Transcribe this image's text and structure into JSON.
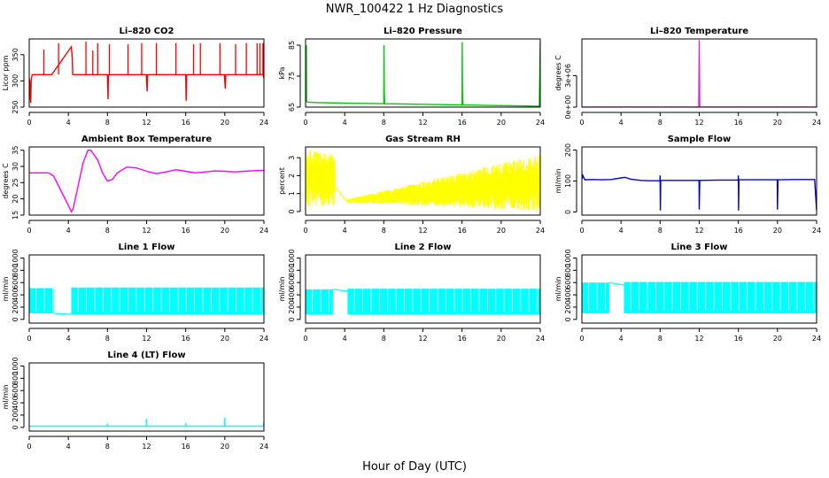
{
  "figure": {
    "title": "NWR_100422  1 Hz Diagnostics",
    "xlabel": "Hour of Day (UTC)"
  },
  "chart_data": [
    {
      "id": "co2",
      "type": "line",
      "title": "Li–820 CO2",
      "ylabel": "Licor ppm",
      "xlim": [
        0,
        24
      ],
      "ylim": [
        250,
        380
      ],
      "yticks": [
        250,
        300,
        350
      ],
      "yticklabels": [
        "250",
        "300",
        "350"
      ],
      "xticks": [
        0,
        4,
        8,
        12,
        16,
        20,
        24
      ],
      "color": "#ff0000",
      "series": [
        {
          "name": "CO2",
          "x": [
            0,
            0.05,
            0.1,
            0.15,
            0.2,
            0.3,
            2,
            2.3,
            4.3,
            4.4,
            4.45,
            4.6,
            6,
            8,
            8.02,
            8.06,
            8.1,
            8.4,
            10,
            11.98,
            12,
            12.05,
            12.1,
            14,
            15.95,
            16,
            16.02,
            16.05,
            16.1,
            18,
            19.95,
            20,
            20.05,
            20.1,
            22,
            23.9,
            24
          ],
          "y": [
            305,
            300,
            270,
            258,
            300,
            312,
            312,
            312,
            365,
            345,
            312,
            312,
            312,
            312,
            290,
            265,
            312,
            312,
            312,
            312,
            300,
            280,
            312,
            312,
            312,
            312,
            288,
            262,
            312,
            312,
            312,
            300,
            285,
            312,
            312,
            312,
            305
          ]
        },
        {
          "name": "CO2 spikes",
          "x": [
            1.5,
            3,
            5.8,
            6.5,
            7,
            8.2,
            10.1,
            11.5,
            13,
            15,
            16.8,
            17.5,
            19.5,
            21.1,
            22.2,
            23.3,
            23.6,
            23.9
          ],
          "y": [
            360,
            372,
            375,
            358,
            372,
            370,
            370,
            372,
            372,
            372,
            370,
            372,
            372,
            370,
            372,
            372,
            372,
            372
          ]
        }
      ]
    },
    {
      "id": "pressure",
      "type": "line",
      "title": "Li–820 Pressure",
      "ylabel": "kPa",
      "xlim": [
        0,
        24
      ],
      "ylim": [
        65,
        87
      ],
      "yticks": [
        65,
        75,
        85
      ],
      "yticklabels": [
        "65",
        "75",
        "85"
      ],
      "xticks": [
        0,
        4,
        8,
        12,
        16,
        20,
        24
      ],
      "color": "#00cc00",
      "series": [
        {
          "name": "Pressure",
          "x": [
            0,
            0.02,
            0.05,
            0.08,
            0.1,
            0.2,
            1,
            2,
            4,
            6,
            8,
            8.02,
            8.05,
            8.1,
            10,
            12,
            14,
            16,
            16.02,
            16.05,
            16.1,
            18,
            20,
            22,
            23.9,
            24,
            24.02
          ],
          "y": [
            66.8,
            85,
            72,
            85,
            66.8,
            66.6,
            66.5,
            66.4,
            66.3,
            66.2,
            66.1,
            85,
            70,
            66.1,
            66.0,
            65.9,
            65.8,
            65.7,
            86,
            70,
            65.7,
            65.6,
            65.5,
            65.4,
            65.3,
            86,
            66
          ]
        }
      ]
    },
    {
      "id": "temperature",
      "type": "line",
      "title": "Li–820 Temperature",
      "ylabel": "degrees C",
      "xlim": [
        0,
        24
      ],
      "ylim": [
        0,
        6500000
      ],
      "yticks": [
        0,
        3000000
      ],
      "yticklabels": [
        "0e+00",
        "3e+06"
      ],
      "xticks": [
        0,
        4,
        8,
        12,
        16,
        20,
        24
      ],
      "color": "#cc33cc",
      "series": [
        {
          "name": "Temperature",
          "x": [
            0,
            11.95,
            12,
            12.05,
            24
          ],
          "y": [
            48,
            48,
            6400000,
            48,
            48
          ]
        }
      ]
    },
    {
      "id": "ambient",
      "type": "line",
      "title": "Ambient Box Temperature",
      "ylabel": "degrees C",
      "xlim": [
        0,
        24
      ],
      "ylim": [
        15,
        36
      ],
      "yticks": [
        15,
        20,
        25,
        30,
        35
      ],
      "yticklabels": [
        "15",
        "20",
        "25",
        "30",
        "35"
      ],
      "xticks": [
        0,
        4,
        8,
        12,
        16,
        20,
        24
      ],
      "color": "#ff00ff",
      "series": [
        {
          "name": "Ambient",
          "x": [
            0,
            1,
            2,
            2.5,
            3,
            3.5,
            4,
            4.3,
            4.5,
            5,
            5.5,
            6,
            6.3,
            7,
            7.5,
            8,
            8.5,
            9,
            10,
            11,
            12,
            13,
            14,
            15,
            16,
            17,
            18,
            19,
            20,
            21,
            22,
            23,
            24
          ],
          "y": [
            28,
            28,
            28,
            27,
            24,
            21,
            18,
            16,
            17,
            24,
            31,
            35,
            35,
            32,
            28,
            25.5,
            26,
            28,
            29.8,
            29.5,
            28.5,
            27.8,
            28.3,
            29,
            28.5,
            28,
            28.3,
            28.6,
            28.5,
            28.3,
            28.5,
            28.7,
            28.8
          ]
        }
      ]
    },
    {
      "id": "rh",
      "type": "band",
      "title": "Gas Stream RH",
      "ylabel": "percent",
      "xlim": [
        0,
        24
      ],
      "ylim": [
        -0.2,
        3.6
      ],
      "yticks": [
        0,
        1,
        2,
        3
      ],
      "yticklabels": [
        "0",
        "1",
        "2",
        "3"
      ],
      "xticks": [
        0,
        4,
        8,
        12,
        16,
        20,
        24
      ],
      "color": "#ffff00",
      "series": [
        {
          "name": "RH",
          "x": [
            0,
            3,
            4.3,
            24
          ],
          "y": [
            1.6,
            1.4,
            0.6,
            1.5
          ],
          "low": [
            0.2,
            0.3,
            0.5,
            0.0
          ],
          "high": [
            3.5,
            3.2,
            0.7,
            3.2
          ]
        }
      ]
    },
    {
      "id": "sample_flow",
      "type": "line",
      "title": "Sample Flow",
      "ylabel": "ml/min",
      "xlim": [
        0,
        24
      ],
      "ylim": [
        -10,
        210
      ],
      "yticks": [
        0,
        100,
        200
      ],
      "yticklabels": [
        "0",
        "100",
        "200"
      ],
      "xticks": [
        0,
        4,
        8,
        12,
        16,
        20,
        24
      ],
      "color": "#0000dd",
      "series": [
        {
          "name": "Sample",
          "x": [
            0,
            0.1,
            0.3,
            1,
            2,
            3,
            4,
            4.4,
            5,
            6,
            7,
            7.98,
            8,
            8.02,
            8.06,
            8.1,
            10,
            11.98,
            12,
            12.05,
            12.1,
            14,
            15.98,
            16,
            16.02,
            16.06,
            16.1,
            18,
            19.98,
            20,
            20.05,
            20.1,
            22,
            23.8,
            24
          ],
          "y": [
            106,
            118,
            104,
            105,
            104,
            105,
            110,
            112,
            106,
            102,
            101,
            101,
            118,
            5,
            101,
            102,
            102,
            102,
            8,
            102,
            102,
            103,
            103,
            118,
            5,
            103,
            104,
            104,
            104,
            8,
            104,
            104,
            105,
            105,
            5
          ]
        }
      ]
    },
    {
      "id": "line1",
      "type": "band",
      "title": "Line 1 Flow",
      "ylabel": "ml/min",
      "xlim": [
        0,
        24
      ],
      "ylim": [
        -60,
        1050
      ],
      "yticks": [
        0,
        200,
        400,
        600,
        800,
        1000
      ],
      "yticklabels": [
        "0",
        "200",
        "400",
        "600",
        "800",
        "1000"
      ],
      "xticks": [
        0,
        4,
        8,
        12,
        16,
        20,
        24
      ],
      "color": "#00ffff",
      "segments": [
        {
          "x": [
            0,
            2.5
          ],
          "low": 100,
          "high": 510
        },
        {
          "x": [
            4.3,
            24
          ],
          "low": 80,
          "high": 520
        }
      ],
      "connectors": [
        {
          "x": [
            2.5,
            4.3
          ],
          "y": [
            100,
            80
          ]
        }
      ]
    },
    {
      "id": "line2",
      "type": "band",
      "title": "Line 2 Flow",
      "ylabel": "ml/min",
      "xlim": [
        0,
        24
      ],
      "ylim": [
        -60,
        1050
      ],
      "yticks": [
        0,
        200,
        400,
        600,
        800,
        1000
      ],
      "yticklabels": [
        "0",
        "200",
        "400",
        "600",
        "800",
        "1000"
      ],
      "xticks": [
        0,
        4,
        8,
        12,
        16,
        20,
        24
      ],
      "color": "#00ffff",
      "segments": [
        {
          "x": [
            0,
            2.8
          ],
          "low": 80,
          "high": 490
        },
        {
          "x": [
            4.3,
            24
          ],
          "low": 80,
          "high": 500
        }
      ],
      "connectors": [
        {
          "x": [
            2.8,
            4.3
          ],
          "y": [
            490,
            460
          ]
        }
      ]
    },
    {
      "id": "line3",
      "type": "band",
      "title": "Line 3 Flow",
      "ylabel": "ml/min",
      "xlim": [
        0,
        24
      ],
      "ylim": [
        -60,
        1050
      ],
      "yticks": [
        0,
        200,
        400,
        600,
        800,
        1000
      ],
      "yticklabels": [
        "0",
        "200",
        "400",
        "600",
        "800",
        "1000"
      ],
      "xticks": [
        0,
        4,
        8,
        12,
        16,
        20,
        24
      ],
      "color": "#00ffff",
      "segments": [
        {
          "x": [
            0,
            2.8
          ],
          "low": 100,
          "high": 600
        },
        {
          "x": [
            4.3,
            24
          ],
          "low": 100,
          "high": 610
        }
      ],
      "connectors": [
        {
          "x": [
            2.8,
            4.3
          ],
          "y": [
            600,
            560
          ]
        }
      ]
    },
    {
      "id": "line4",
      "type": "line",
      "title": "Line 4 (LT) Flow",
      "ylabel": "ml/min",
      "xlim": [
        0,
        24
      ],
      "ylim": [
        -60,
        1050
      ],
      "yticks": [
        0,
        200,
        400,
        600,
        800,
        1000
      ],
      "yticklabels": [
        "0",
        "200",
        "400",
        "600",
        "800",
        "1000"
      ],
      "xticks": [
        0,
        4,
        8,
        12,
        16,
        20,
        24
      ],
      "color": "#00ffff",
      "series": [
        {
          "name": "Line 4",
          "x": [
            0,
            7.98,
            8,
            8.02,
            11.98,
            12,
            12.02,
            15.98,
            16,
            16.02,
            19.98,
            20,
            20.02,
            23.95,
            24,
            24.02
          ],
          "y": [
            20,
            20,
            65,
            20,
            20,
            140,
            20,
            20,
            70,
            20,
            20,
            160,
            20,
            20,
            90,
            20
          ]
        }
      ]
    }
  ]
}
